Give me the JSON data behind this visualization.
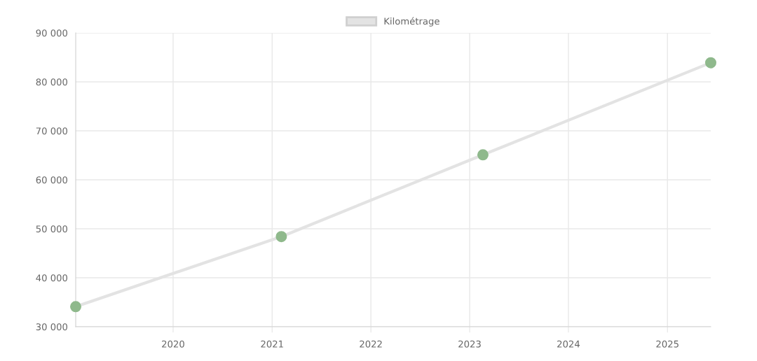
{
  "chart_data": {
    "type": "line",
    "x": [
      "2019-01-06",
      "2021-02-04",
      "2023-02-19",
      "2025-06-10"
    ],
    "series": [
      {
        "name": "Kilométrage",
        "color": "#e3e3e3",
        "colors": [
          "#8fb98c",
          "#8fb98c",
          "#8fb98c",
          "#8fb98c"
        ],
        "values": [
          34100,
          48400,
          65100,
          83900
        ]
      }
    ],
    "xlim": [
      "2019-01-06",
      "2025-06-10"
    ],
    "xticks": [
      {
        "value": "2020",
        "label": "2020"
      },
      {
        "value": "2021",
        "label": "2021"
      },
      {
        "value": "2022",
        "label": "2022"
      },
      {
        "value": "2023",
        "label": "2023"
      },
      {
        "value": "2024",
        "label": "2024"
      },
      {
        "value": "2025",
        "label": "2025"
      }
    ],
    "ylim": [
      30000,
      90000
    ],
    "yticks": [
      {
        "value": 30000,
        "label": "30 000"
      },
      {
        "value": 40000,
        "label": "40 000"
      },
      {
        "value": 50000,
        "label": "50 000"
      },
      {
        "value": 60000,
        "label": "60 000"
      },
      {
        "value": 70000,
        "label": "70 000"
      },
      {
        "value": 80000,
        "label": "80 000"
      },
      {
        "value": 90000,
        "label": "90 000"
      }
    ],
    "grid": true,
    "legend": "top",
    "marker": "circle",
    "line_style": "solid"
  }
}
